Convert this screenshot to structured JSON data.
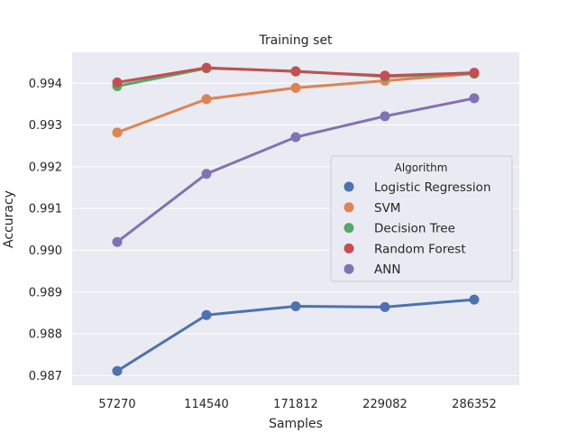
{
  "chart_data": {
    "type": "line",
    "title": "Training set",
    "xlabel": "Samples",
    "ylabel": "Accuracy",
    "categories": [
      "57270",
      "114540",
      "171812",
      "229082",
      "286352"
    ],
    "ylim": [
      0.98677,
      0.99474
    ],
    "yticks": [
      "0.987",
      "0.988",
      "0.989",
      "0.990",
      "0.991",
      "0.992",
      "0.993",
      "0.994"
    ],
    "grid": true,
    "legend": {
      "title": "Algorithm",
      "placement": "center-right"
    },
    "series": [
      {
        "name": "Logistic Regression",
        "color": "#4c72b0",
        "values": [
          0.98711,
          0.98845,
          0.98866,
          0.98864,
          0.98882
        ]
      },
      {
        "name": "SVM",
        "color": "#dd8452",
        "values": [
          0.99282,
          0.99362,
          0.99389,
          0.99406,
          0.99423
        ]
      },
      {
        "name": "Decision Tree",
        "color": "#55a868",
        "values": [
          0.99393,
          0.99436,
          0.99429,
          0.99416,
          0.99423
        ]
      },
      {
        "name": "Random Forest",
        "color": "#c44e52",
        "values": [
          0.99402,
          0.99437,
          0.99428,
          0.99418,
          0.99425
        ]
      },
      {
        "name": "ANN",
        "color": "#8172b3",
        "values": [
          0.9902,
          0.99183,
          0.99271,
          0.99321,
          0.99364
        ]
      }
    ]
  }
}
